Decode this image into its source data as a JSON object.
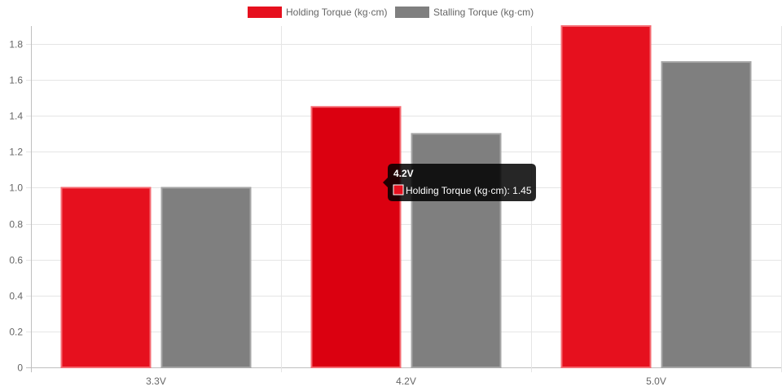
{
  "chart_data": {
    "type": "bar",
    "categories": [
      "3.3V",
      "4.2V",
      "5.0V"
    ],
    "series": [
      {
        "name": "Holding Torque (kg·cm)",
        "values": [
          1.0,
          1.45,
          1.9
        ],
        "color": "#e6101e",
        "border": "#f56a72"
      },
      {
        "name": "Stalling Torque (kg·cm)",
        "values": [
          1.0,
          1.3,
          1.7
        ],
        "color": "#7f7f7f",
        "border": "#a6a6a6"
      }
    ],
    "ylim": [
      0,
      1.9
    ],
    "yticks": [
      "0",
      "0.2",
      "0.4",
      "0.6",
      "0.8",
      "1.0",
      "1.2",
      "1.4",
      "1.6",
      "1.8"
    ],
    "legend": "top-center",
    "grid": true,
    "tooltip": {
      "title": "4.2V",
      "label": "Holding Torque (kg·cm): 1.45",
      "color": "#e6101e",
      "active_category": 1,
      "active_series": 0
    }
  }
}
